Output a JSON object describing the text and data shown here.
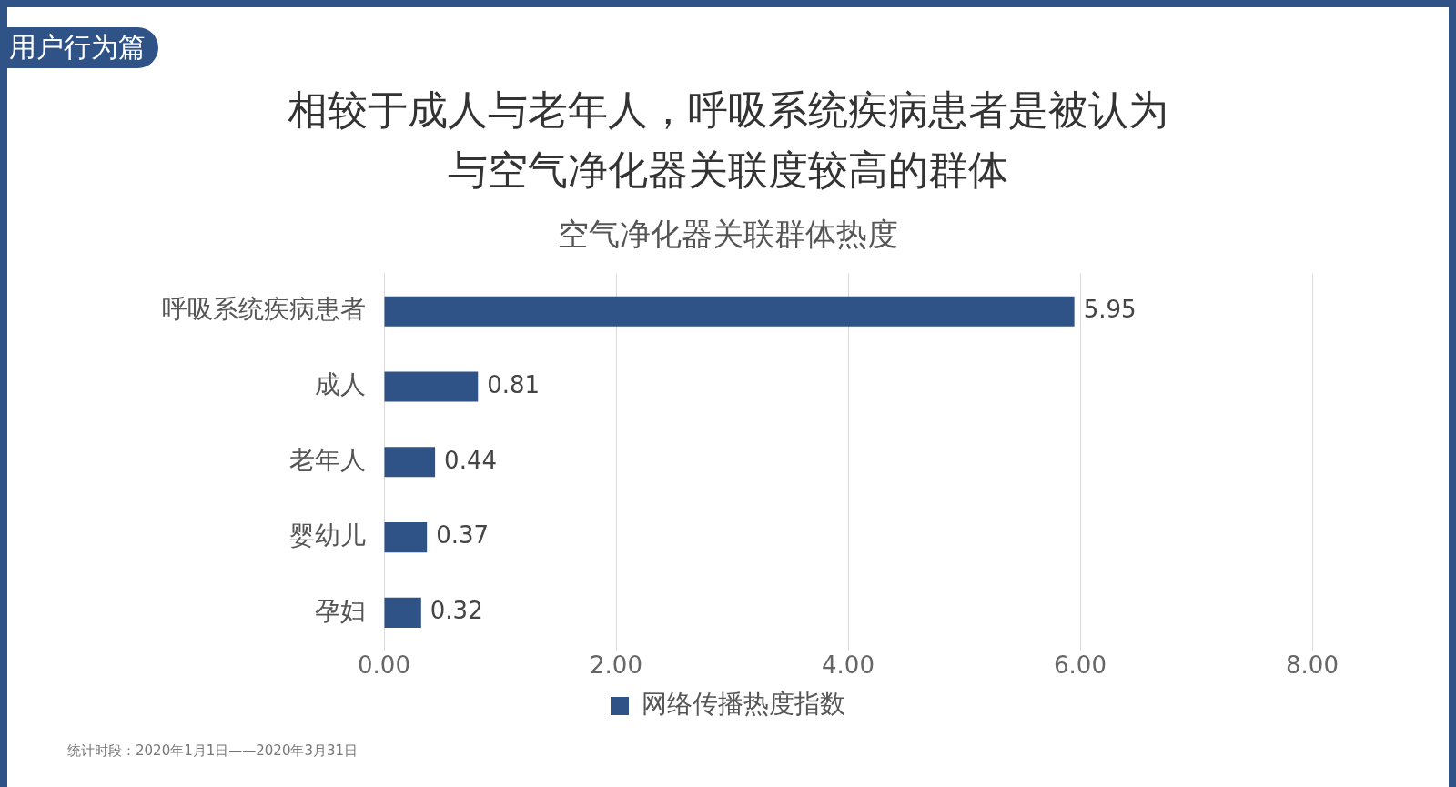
{
  "chart_data": {
    "type": "bar",
    "orientation": "horizontal",
    "title": "相较于成人与老年人，呼吸系统疾病患者是被认为与空气净化器关联度较高的群体",
    "subtitle": "空气净化器关联群体热度",
    "categories": [
      "呼吸系统疾病患者",
      "成人",
      "老年人",
      "婴幼儿",
      "孕妇"
    ],
    "series": [
      {
        "name": "网络传播热度指数",
        "color": "#2f5386",
        "values": [
          5.95,
          0.81,
          0.44,
          0.37,
          0.32
        ]
      }
    ],
    "xlim": [
      0,
      8
    ],
    "xticks": [
      {
        "value": 0,
        "label": "0.00"
      },
      {
        "value": 2,
        "label": "2.00"
      },
      {
        "value": 4,
        "label": "4.00"
      },
      {
        "value": 6,
        "label": "6.00"
      },
      {
        "value": 8,
        "label": "8.00"
      }
    ],
    "grid": "x",
    "legend": "bottom",
    "data_labels": true,
    "annotations": [
      "用户行为篇",
      "统计时段：2020年1月1日——2020年3月31日"
    ]
  }
}
